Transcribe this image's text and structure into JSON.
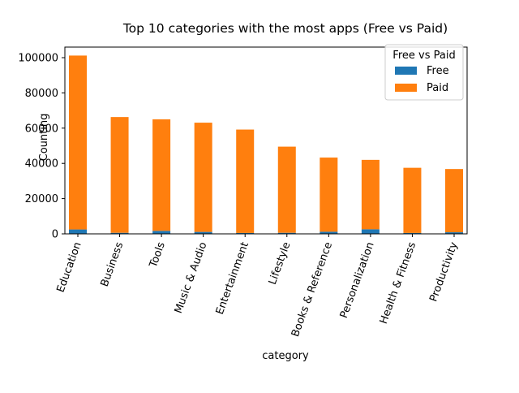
{
  "chart_data": {
    "type": "bar",
    "stacked": true,
    "title": "Top 10 categories with the most apps (Free vs Paid)",
    "xlabel": "category",
    "ylabel": "Counting",
    "categories": [
      "Education",
      "Business",
      "Tools",
      "Music & Audio",
      "Entertainment",
      "Lifestyle",
      "Books & Reference",
      "Personalization",
      "Health & Fitness",
      "Productivity"
    ],
    "series": [
      {
        "name": "Free",
        "color": "#1f77b4",
        "values": [
          2500,
          600,
          1700,
          1100,
          500,
          600,
          1200,
          2600,
          500,
          900
        ]
      },
      {
        "name": "Paid",
        "color": "#ff7f0e",
        "values": [
          98700,
          65700,
          63300,
          62000,
          58700,
          48900,
          42100,
          39400,
          37000,
          35900
        ]
      }
    ],
    "ylim": [
      0,
      106000
    ],
    "yticks": [
      0,
      20000,
      40000,
      60000,
      80000,
      100000
    ],
    "legend": {
      "title": "Free vs Paid",
      "position": "top-right"
    },
    "grid": false
  }
}
